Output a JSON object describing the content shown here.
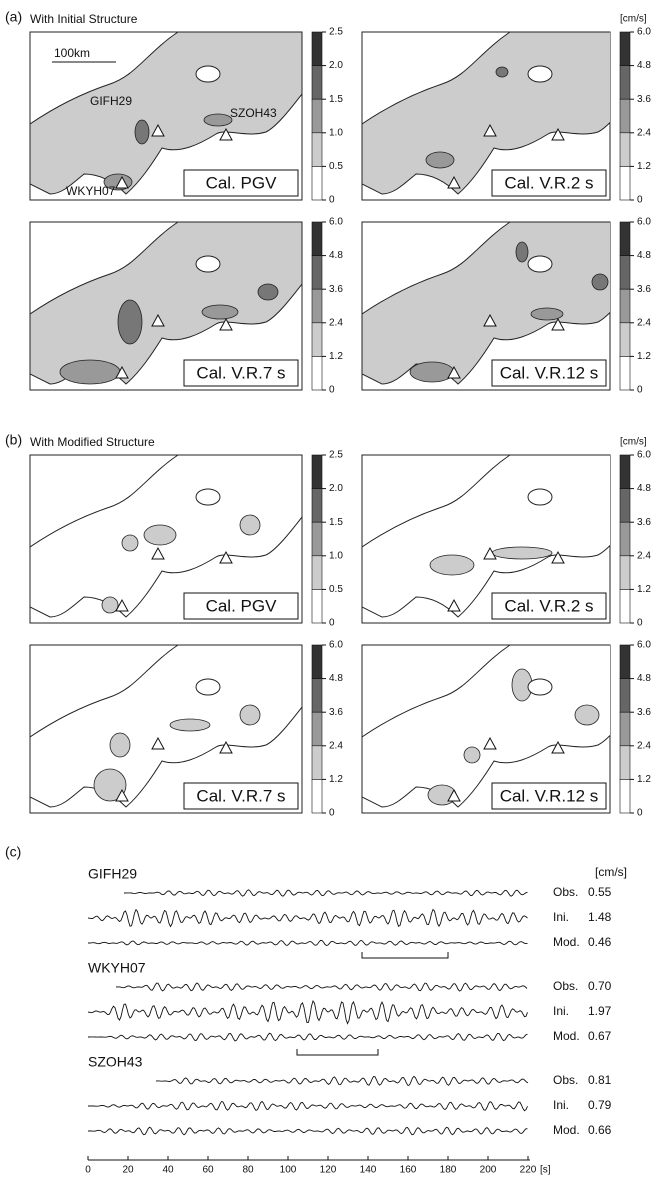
{
  "panel_a": {
    "label": "(a)",
    "title": "With Initial Structure",
    "unit": "[cm/s]",
    "maps": [
      {
        "caption": "Cal. PGV",
        "colorbar": [
          "2.5",
          "2.0",
          "1.5",
          "1.0",
          "0.5",
          "0"
        ]
      },
      {
        "caption": "Cal. V.R.2 s",
        "colorbar": [
          "6.0",
          "4.8",
          "3.6",
          "2.4",
          "1.2",
          "0"
        ]
      },
      {
        "caption": "Cal. V.R.7 s",
        "colorbar": [
          "6.0",
          "4.8",
          "3.6",
          "2.4",
          "1.2",
          "0"
        ]
      },
      {
        "caption": "Cal. V.R.12 s",
        "colorbar": [
          "6.0",
          "4.8",
          "3.6",
          "2.4",
          "1.2",
          "0"
        ]
      }
    ]
  },
  "map_annotations": {
    "scale": "100km",
    "stations": [
      "GIFH29",
      "SZOH43",
      "WKYH07"
    ]
  },
  "panel_b": {
    "label": "(b)",
    "title": "With Modified Structure",
    "unit": "[cm/s]",
    "maps": [
      {
        "caption": "Cal. PGV",
        "colorbar": [
          "2.5",
          "2.0",
          "1.5",
          "1.0",
          "0.5",
          "0"
        ]
      },
      {
        "caption": "Cal. V.R.2 s",
        "colorbar": [
          "6.0",
          "4.8",
          "3.6",
          "2.4",
          "1.2",
          "0"
        ]
      },
      {
        "caption": "Cal. V.R.7 s",
        "colorbar": [
          "6.0",
          "4.8",
          "3.6",
          "2.4",
          "1.2",
          "0"
        ]
      },
      {
        "caption": "Cal. V.R.12 s",
        "colorbar": [
          "6.0",
          "4.8",
          "3.6",
          "2.4",
          "1.2",
          "0"
        ]
      }
    ]
  },
  "panel_c": {
    "label": "(c)",
    "unit": "[cm/s]",
    "stations": [
      {
        "name": "GIFH29",
        "traces": [
          {
            "kind": "Obs.",
            "peak": "0.55"
          },
          {
            "kind": "Ini.",
            "peak": "1.48"
          },
          {
            "kind": "Mod.",
            "peak": "0.46"
          }
        ]
      },
      {
        "name": "WKYH07",
        "traces": [
          {
            "kind": "Obs.",
            "peak": "0.70"
          },
          {
            "kind": "Ini.",
            "peak": "1.97"
          },
          {
            "kind": "Mod.",
            "peak": "0.67"
          }
        ]
      },
      {
        "name": "SZOH43",
        "traces": [
          {
            "kind": "Obs.",
            "peak": "0.81"
          },
          {
            "kind": "Ini.",
            "peak": "0.79"
          },
          {
            "kind": "Mod.",
            "peak": "0.66"
          }
        ]
      }
    ],
    "time_axis": {
      "ticks": [
        "0",
        "20",
        "40",
        "60",
        "80",
        "100",
        "120",
        "140",
        "160",
        "180",
        "200",
        "220"
      ],
      "unit": "[s]"
    }
  }
}
